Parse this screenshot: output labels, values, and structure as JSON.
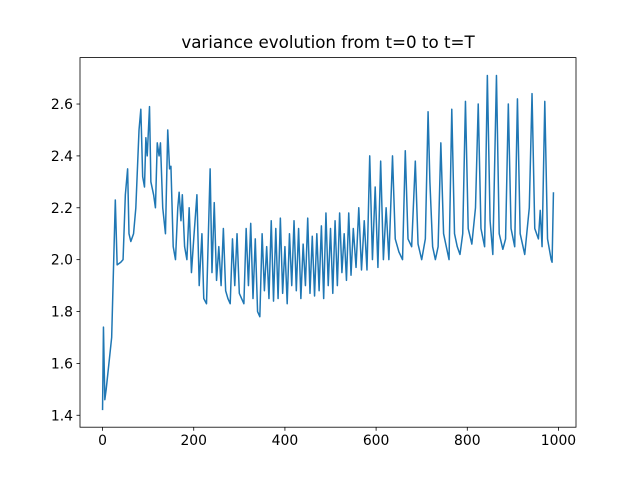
{
  "chart_data": {
    "type": "line",
    "title": "variance evolution from t=0 to t=T",
    "color": "#1f77b4",
    "x": [
      0,
      2,
      5,
      8,
      20,
      28,
      32,
      40,
      45,
      50,
      55,
      58,
      62,
      68,
      73,
      80,
      84,
      88,
      92,
      95,
      98,
      103,
      106,
      112,
      116,
      120,
      124,
      127,
      132,
      138,
      143,
      147,
      150,
      155,
      160,
      165,
      168,
      172,
      175,
      180,
      185,
      190,
      195,
      200,
      207,
      212,
      218,
      222,
      228,
      236,
      240,
      245,
      250,
      255,
      260,
      265,
      270,
      275,
      280,
      285,
      290,
      295,
      300,
      305,
      310,
      315,
      320,
      325,
      330,
      335,
      340,
      345,
      350,
      355,
      360,
      365,
      370,
      375,
      380,
      385,
      390,
      395,
      400,
      405,
      410,
      415,
      420,
      425,
      430,
      435,
      440,
      445,
      450,
      455,
      460,
      465,
      470,
      475,
      480,
      485,
      490,
      495,
      500,
      505,
      510,
      515,
      520,
      525,
      530,
      535,
      540,
      545,
      550,
      556,
      562,
      568,
      574,
      580,
      586,
      592,
      598,
      604,
      610,
      616,
      622,
      628,
      636,
      642,
      650,
      658,
      664,
      670,
      678,
      686,
      692,
      700,
      708,
      714,
      718,
      724,
      730,
      736,
      742,
      748,
      754,
      760,
      766,
      772,
      778,
      784,
      790,
      796,
      802,
      810,
      818,
      824,
      830,
      838,
      844,
      850,
      856,
      864,
      870,
      878,
      884,
      890,
      896,
      904,
      910,
      916,
      926,
      936,
      942,
      948,
      956,
      960,
      964,
      970,
      976,
      984,
      986,
      989
    ],
    "values": [
      1.42,
      1.74,
      1.46,
      1.5,
      1.7,
      2.23,
      1.98,
      1.99,
      2.0,
      2.25,
      2.35,
      2.1,
      2.07,
      2.1,
      2.2,
      2.5,
      2.58,
      2.32,
      2.28,
      2.47,
      2.4,
      2.59,
      2.3,
      2.25,
      2.2,
      2.45,
      2.4,
      2.45,
      2.2,
      2.1,
      2.5,
      2.35,
      2.36,
      2.05,
      2.0,
      2.2,
      2.26,
      2.15,
      2.25,
      2.05,
      2.0,
      2.2,
      1.95,
      2.08,
      2.25,
      1.9,
      2.1,
      1.85,
      1.83,
      2.35,
      1.95,
      2.22,
      1.92,
      2.05,
      1.9,
      2.12,
      1.88,
      1.85,
      1.83,
      2.08,
      1.9,
      2.1,
      1.87,
      1.85,
      1.83,
      2.12,
      1.9,
      2.14,
      1.85,
      2.08,
      1.8,
      1.78,
      2.1,
      1.88,
      2.05,
      1.85,
      2.15,
      1.84,
      2.12,
      1.85,
      2.16,
      1.87,
      2.05,
      1.83,
      2.1,
      1.9,
      2.15,
      1.88,
      2.12,
      1.85,
      2.06,
      1.9,
      2.16,
      1.87,
      2.09,
      1.86,
      2.1,
      1.88,
      2.13,
      1.85,
      2.18,
      1.9,
      2.12,
      1.87,
      2.15,
      1.9,
      2.18,
      1.95,
      2.1,
      1.92,
      2.18,
      1.94,
      2.12,
      1.97,
      2.2,
      1.96,
      2.15,
      1.96,
      2.4,
      2.0,
      2.28,
      1.97,
      2.38,
      2.0,
      2.2,
      2.0,
      2.4,
      2.08,
      2.03,
      2.0,
      2.42,
      2.08,
      2.05,
      2.38,
      2.06,
      2.0,
      2.08,
      2.57,
      2.3,
      2.05,
      2.0,
      2.05,
      2.45,
      2.1,
      2.05,
      2.0,
      2.58,
      2.1,
      2.05,
      2.02,
      2.1,
      2.61,
      2.12,
      2.06,
      2.2,
      2.6,
      2.12,
      2.05,
      2.71,
      2.15,
      2.02,
      2.71,
      2.1,
      2.04,
      2.08,
      2.6,
      2.12,
      2.05,
      2.62,
      2.1,
      2.02,
      2.2,
      2.64,
      2.12,
      2.08,
      2.19,
      2.05,
      2.61,
      2.08,
      2.0,
      1.99,
      2.26
    ],
    "xlim": [
      -49.45,
      1038.45
    ],
    "ylim": [
      1.354,
      2.779
    ],
    "xticks": [
      0,
      200,
      400,
      600,
      800,
      1000
    ],
    "yticks": [
      1.4,
      1.6,
      1.8,
      {
        "value": 2,
        "label": "2.0"
      },
      2.2,
      2.4,
      2.6
    ]
  }
}
